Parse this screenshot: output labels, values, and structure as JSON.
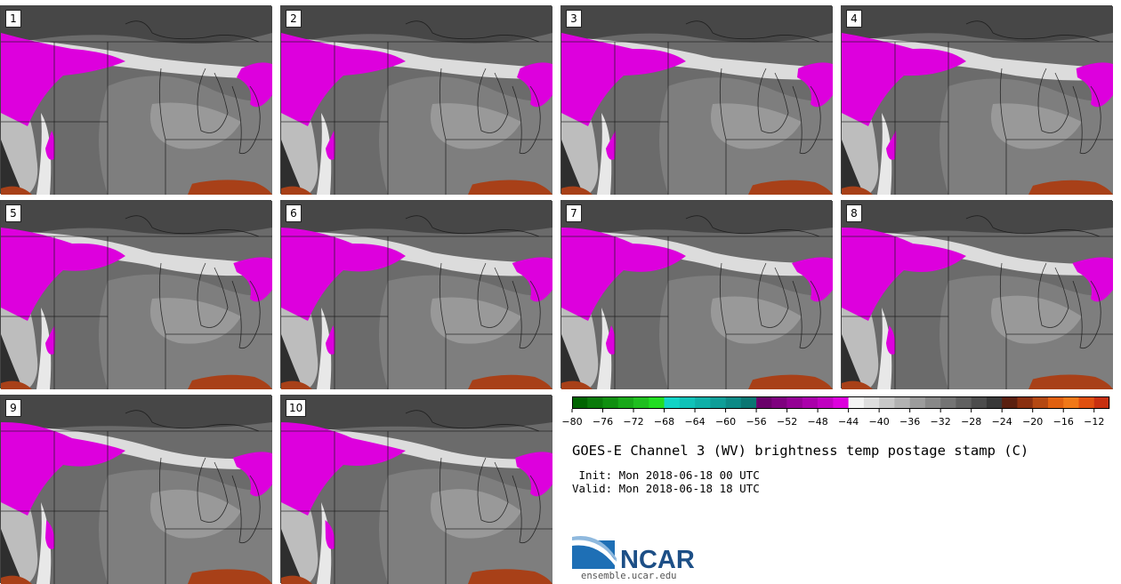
{
  "panels": [
    {
      "label": "1"
    },
    {
      "label": "2"
    },
    {
      "label": "3"
    },
    {
      "label": "4"
    },
    {
      "label": "5"
    },
    {
      "label": "6"
    },
    {
      "label": "7"
    },
    {
      "label": "8"
    },
    {
      "label": "9"
    },
    {
      "label": "10"
    }
  ],
  "colorbar": {
    "ticks": [
      "−80",
      "−76",
      "−72",
      "−68",
      "−64",
      "−60",
      "−56",
      "−52",
      "−48",
      "−44",
      "−40",
      "−36",
      "−32",
      "−28",
      "−24",
      "−20",
      "−16",
      "−12"
    ],
    "min": -80,
    "max": -10,
    "bins": [
      {
        "from": -80,
        "to": -78,
        "color": "#006400"
      },
      {
        "from": -78,
        "to": -76,
        "color": "#0a7a0a"
      },
      {
        "from": -76,
        "to": -74,
        "color": "#108f10"
      },
      {
        "from": -74,
        "to": -72,
        "color": "#18a818"
      },
      {
        "from": -72,
        "to": -70,
        "color": "#1fbf1f"
      },
      {
        "from": -70,
        "to": -68,
        "color": "#22dd22"
      },
      {
        "from": -68,
        "to": -66,
        "color": "#11d4c6"
      },
      {
        "from": -66,
        "to": -64,
        "color": "#10c2b8"
      },
      {
        "from": -64,
        "to": -62,
        "color": "#0fb0a8"
      },
      {
        "from": -62,
        "to": -60,
        "color": "#0e9e98"
      },
      {
        "from": -60,
        "to": -58,
        "color": "#0c8a86"
      },
      {
        "from": -58,
        "to": -56,
        "color": "#0a7672"
      },
      {
        "from": -56,
        "to": -54,
        "color": "#6a006a"
      },
      {
        "from": -54,
        "to": -52,
        "color": "#7e007e"
      },
      {
        "from": -52,
        "to": -50,
        "color": "#940094"
      },
      {
        "from": -50,
        "to": -48,
        "color": "#aa00aa"
      },
      {
        "from": -48,
        "to": -46,
        "color": "#c000c0"
      },
      {
        "from": -46,
        "to": -44,
        "color": "#dd00dd"
      },
      {
        "from": -44,
        "to": -42,
        "color": "#f4f4f4"
      },
      {
        "from": -42,
        "to": -40,
        "color": "#dedede"
      },
      {
        "from": -40,
        "to": -38,
        "color": "#c8c8c8"
      },
      {
        "from": -38,
        "to": -36,
        "color": "#b2b2b2"
      },
      {
        "from": -36,
        "to": -34,
        "color": "#9c9c9c"
      },
      {
        "from": -34,
        "to": -32,
        "color": "#888888"
      },
      {
        "from": -32,
        "to": -30,
        "color": "#747474"
      },
      {
        "from": -30,
        "to": -28,
        "color": "#606060"
      },
      {
        "from": -28,
        "to": -26,
        "color": "#4c4c4c"
      },
      {
        "from": -26,
        "to": -24,
        "color": "#383838"
      },
      {
        "from": -24,
        "to": -22,
        "color": "#5a2010"
      },
      {
        "from": -22,
        "to": -20,
        "color": "#8a3010"
      },
      {
        "from": -20,
        "to": -18,
        "color": "#b44812"
      },
      {
        "from": -18,
        "to": -16,
        "color": "#e06010"
      },
      {
        "from": -16,
        "to": -14,
        "color": "#f07818"
      },
      {
        "from": -14,
        "to": -12,
        "color": "#e05010"
      },
      {
        "from": -12,
        "to": -10,
        "color": "#c83010"
      }
    ]
  },
  "colors": {
    "cold_cloud": "#dd00dd",
    "moist": "#dcdcdc",
    "dry": "#4a4a4a",
    "very_dry": "#a84018",
    "boundary": "#1a1a1a"
  },
  "title": "GOES-E Channel 3 (WV) brightness temp postage stamp (C)",
  "init": " Init: Mon 2018-06-18 00 UTC",
  "valid": "Valid: Mon 2018-06-18 18 UTC",
  "logo": {
    "wordmark": "NCAR",
    "url": "ensemble.ucar.edu"
  }
}
